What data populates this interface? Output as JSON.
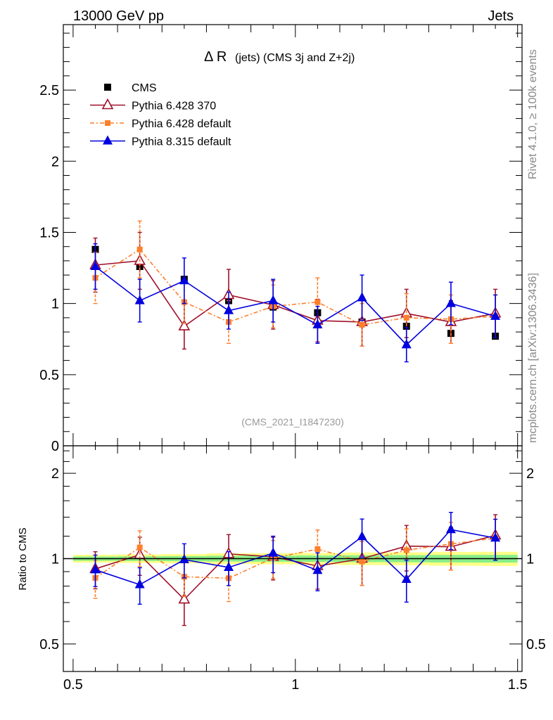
{
  "header": {
    "left": "13000 GeV pp",
    "right": "Jets"
  },
  "side_text": {
    "top": "Rivet 4.1.0, ≥ 100k events",
    "bottom": "mcplots.cern.ch [arXiv:1306.3436]"
  },
  "chart_data": [
    {
      "type": "scatter",
      "title_main": "Δ R",
      "title_rest": "(jets) (CMS 3j and Z+2j)",
      "watermark": "(CMS_2021_I1847230)",
      "xlabel": "",
      "ylabel": "",
      "xlim": [
        0.478,
        1.51
      ],
      "ylim": [
        0,
        2.96
      ],
      "yticks": [
        0,
        0.5,
        1,
        1.5,
        2,
        2.5
      ],
      "ytick_labels": [
        "0",
        "0.5",
        "1",
        "1.5",
        "2",
        "2.5"
      ],
      "legend_position": "top-left",
      "x": [
        0.55,
        0.65,
        0.75,
        0.85,
        0.95,
        1.05,
        1.15,
        1.25,
        1.35,
        1.45
      ],
      "series": [
        {
          "name": "CMS",
          "color": "#000000",
          "marker": "square",
          "values": [
            1.38,
            1.26,
            1.17,
            1.02,
            0.975,
            0.935,
            0.87,
            0.84,
            0.79,
            0.77
          ],
          "errors": [
            0.02,
            0.02,
            0.02,
            0.02,
            0.02,
            0.02,
            0.02,
            0.02,
            0.02,
            0.02
          ]
        },
        {
          "name": "Pythia 6.428 370",
          "color": "#a0102a",
          "marker": "open-triangle",
          "values": [
            1.27,
            1.3,
            0.84,
            1.06,
            0.99,
            0.88,
            0.87,
            0.93,
            0.87,
            0.93
          ],
          "errors": [
            0.19,
            0.2,
            0.16,
            0.18,
            0.17,
            0.15,
            0.17,
            0.17,
            0.15,
            0.17
          ]
        },
        {
          "name": "Pythia 6.428 default",
          "color": "#ff7f2a",
          "marker": "square-small",
          "values": [
            1.18,
            1.38,
            1.01,
            0.87,
            0.98,
            1.01,
            0.85,
            0.9,
            0.89,
            0.91
          ],
          "errors": [
            0.18,
            0.2,
            0.15,
            0.15,
            0.15,
            0.17,
            0.15,
            0.17,
            0.17,
            0.15
          ]
        },
        {
          "name": "Pythia 8.315 default",
          "color": "#0000e0",
          "marker": "filled-triangle",
          "values": [
            1.26,
            1.02,
            1.16,
            0.95,
            1.02,
            0.85,
            1.04,
            0.71,
            1.0,
            0.91
          ],
          "errors": [
            0.16,
            0.15,
            0.16,
            0.13,
            0.15,
            0.13,
            0.16,
            0.12,
            0.15,
            0.15
          ]
        }
      ]
    },
    {
      "type": "scatter",
      "title": "",
      "ylabel": "Ratio to CMS",
      "yscale": "log",
      "xlim": [
        0.478,
        1.51
      ],
      "ylim": [
        0.4,
        2.5
      ],
      "yticks": [
        0.5,
        1,
        2
      ],
      "ytick_labels": [
        "0.5",
        "1",
        "2"
      ],
      "xticks": [
        0.5,
        1,
        1.5
      ],
      "xtick_labels": [
        "0.5",
        "1",
        "1.5"
      ],
      "band_colors": {
        "inner": "#88ee88",
        "outer": "#ffff88"
      },
      "note": "ratio = model / CMS"
    }
  ]
}
